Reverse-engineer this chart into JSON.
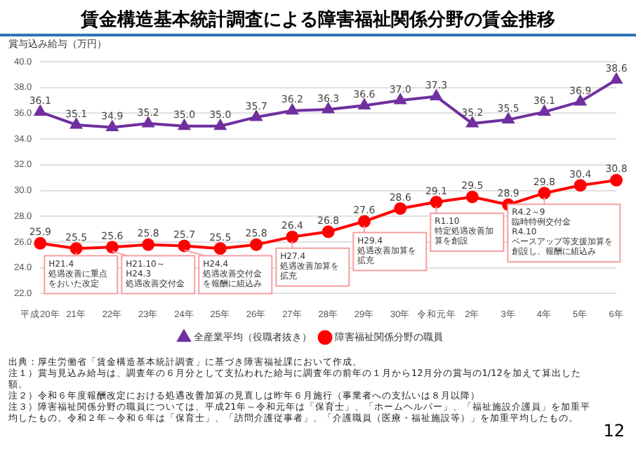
{
  "chart_data": {
    "type": "line",
    "title": "賃金構造基本統計調査による障害福祉関係分野の賃金推移",
    "ylabel": "賞与込み給与（万円）",
    "categories": [
      "平成20年",
      "21年",
      "22年",
      "23年",
      "24年",
      "25年",
      "26年",
      "27年",
      "28年",
      "29年",
      "30年",
      "令和元年",
      "2年",
      "3年",
      "4年",
      "5年",
      "6年"
    ],
    "series": [
      {
        "name": "全産業平均（役職者抜き）",
        "color": "#7030a0",
        "marker": "triangle",
        "values": [
          36.1,
          35.1,
          34.9,
          35.2,
          35.0,
          35.0,
          35.7,
          36.2,
          36.3,
          36.6,
          37.0,
          37.3,
          35.2,
          35.5,
          36.1,
          36.9,
          38.6
        ],
        "value_labels": [
          "36.1",
          "35.1",
          "34.9",
          "35.2",
          "35.0",
          "35.0",
          "35.7",
          "36.2",
          "36.3",
          "36.6",
          "37.0",
          "37.3",
          "35.2",
          "35.5",
          "36.1",
          "36.9",
          "38.6"
        ]
      },
      {
        "name": "障害福祉関係分野の職員",
        "color": "#ff0000",
        "marker": "circle",
        "values": [
          25.9,
          25.5,
          25.6,
          25.8,
          25.7,
          25.5,
          25.8,
          26.4,
          26.8,
          27.6,
          28.6,
          29.1,
          29.5,
          28.9,
          29.8,
          30.4,
          30.8
        ],
        "value_labels": [
          "25.9",
          "25.5",
          "25.6",
          "25.8",
          "25.7",
          "25.5",
          "25.8",
          "26.4",
          "26.8",
          "27.6",
          "28.6",
          "29.1",
          "29.5",
          "28.9",
          "29.8",
          "30.4",
          "30.8"
        ]
      }
    ],
    "ylim": [
      22,
      40
    ],
    "yticks": [
      {
        "value": 22,
        "label": "22.0"
      },
      {
        "value": 24,
        "label": "24.0"
      },
      {
        "value": 26,
        "label": "26.0"
      },
      {
        "value": 28,
        "label": "28.0"
      },
      {
        "value": 30,
        "label": "30.0"
      },
      {
        "value": 32,
        "label": "32.0"
      },
      {
        "value": 34,
        "label": "34.0"
      },
      {
        "value": 36,
        "label": "36.0"
      },
      {
        "value": 38,
        "label": "38.0"
      },
      {
        "value": 40,
        "label": "40.0"
      }
    ],
    "grid": "y",
    "legend": "bottom",
    "line_style": "solid",
    "annotations": [
      {
        "text": "H21.4\n処遇改善に重点をおいた改定",
        "x": "21年",
        "y": 25.5
      },
      {
        "text": "H21.10～\nH24.3\n処遇改善交付金",
        "x": "22年",
        "y": 25.6
      },
      {
        "text": "H24.4\n処遇改善交付金を報酬に組込み",
        "x": "24年",
        "y": 25.7
      },
      {
        "text": "H27.4\n処遇改善加算を拡充",
        "x": "27年",
        "y": 26.4
      },
      {
        "text": "H29.4\n処遇改善加算を拡充",
        "x": "29年",
        "y": 27.6
      },
      {
        "text": "R1.10\n特定処遇改善加算を創設",
        "x": "令和元年",
        "y": 29.1
      },
      {
        "text": "R4.2～9\n臨時特例交付金\nR4.10\nベースアップ等支援加算を創設し、報酬に組込み",
        "x": "4年",
        "y": 29.8
      },
      "出典：厚生労働省「賃金構造基本統計調査」に基づき障害福祉課において作成。",
      "注１）賞与見込み給与は、調査年の６月分として支払われた給与に調査年の前年の１月から12月分の賞与の1/12を加えて算出した額。",
      "注２）令和６年度報酬改定における処遇改善加算の見直しは昨年６月施行（事業者への支払いは８月以降）",
      "注３）障害福祉関係分野の職員については、平成21年～令和元年は「保育士」、「ホームヘルパー」、「福祉施設介護員」を加重平均したもの。令和２年～令和６年は「保育士」、「訪問介護従事者」、「介護職員（医療・福祉施設等）」を加重平均したもの。",
      "12"
    ]
  }
}
